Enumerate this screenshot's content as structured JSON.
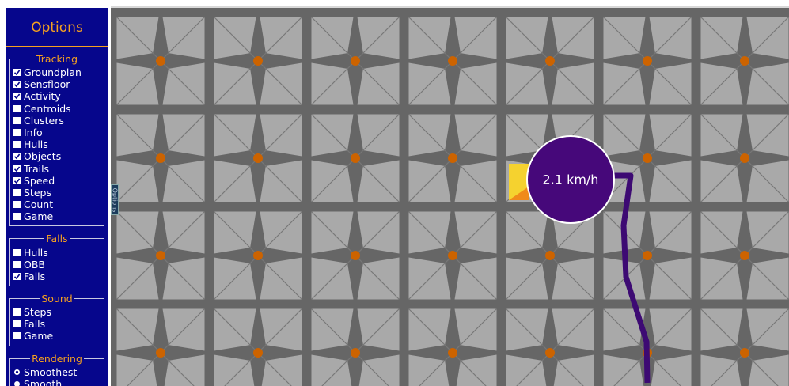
{
  "sidebar": {
    "title": "Options",
    "groups": [
      {
        "name": "Tracking",
        "kind": "checkbox",
        "items": [
          {
            "label": "Groundplan",
            "checked": true
          },
          {
            "label": "Sensfloor",
            "checked": true
          },
          {
            "label": "Activity",
            "checked": true
          },
          {
            "label": "Centroids",
            "checked": false
          },
          {
            "label": "Clusters",
            "checked": false
          },
          {
            "label": "Info",
            "checked": false
          },
          {
            "label": "Hulls",
            "checked": false
          },
          {
            "label": "Objects",
            "checked": true
          },
          {
            "label": "Trails",
            "checked": true
          },
          {
            "label": "Speed",
            "checked": true
          },
          {
            "label": "Steps",
            "checked": false
          },
          {
            "label": "Count",
            "checked": false
          },
          {
            "label": "Game",
            "checked": false
          }
        ]
      },
      {
        "name": "Falls",
        "kind": "checkbox",
        "items": [
          {
            "label": "Hulls",
            "checked": false
          },
          {
            "label": "OBB",
            "checked": false
          },
          {
            "label": "Falls",
            "checked": true
          }
        ]
      },
      {
        "name": "Sound",
        "kind": "checkbox",
        "items": [
          {
            "label": "Steps",
            "checked": false
          },
          {
            "label": "Falls",
            "checked": false
          },
          {
            "label": "Game",
            "checked": false
          }
        ]
      },
      {
        "name": "Rendering",
        "kind": "radio",
        "items": [
          {
            "label": "Smoothest",
            "checked": true
          },
          {
            "label": "Smooth",
            "checked": false
          }
        ]
      }
    ]
  },
  "tab": "Options",
  "speed_label": "2.1 km/h"
}
